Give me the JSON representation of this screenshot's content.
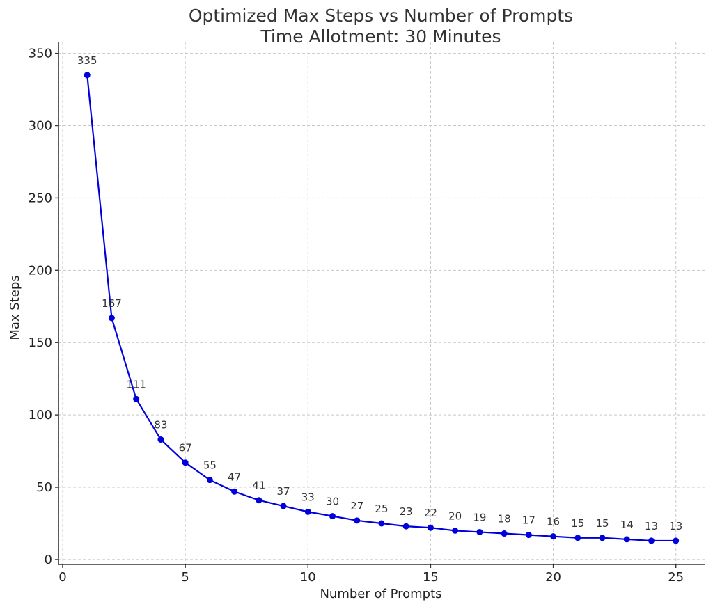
{
  "chart_data": {
    "type": "line",
    "title": "Optimized Max Steps vs Number of Prompts",
    "subtitle": "Time Allotment: 30 Minutes",
    "xlabel": "Number of Prompts",
    "ylabel": "Max Steps",
    "x": [
      1,
      2,
      3,
      4,
      5,
      6,
      7,
      8,
      9,
      10,
      11,
      12,
      13,
      14,
      15,
      16,
      17,
      18,
      19,
      20,
      21,
      22,
      23,
      24,
      25
    ],
    "series": [
      {
        "name": "Max Steps",
        "color": "#0000dd",
        "values": [
          335,
          167,
          111,
          83,
          67,
          55,
          47,
          41,
          37,
          33,
          30,
          27,
          25,
          23,
          22,
          20,
          19,
          18,
          17,
          16,
          15,
          15,
          14,
          13,
          13
        ]
      }
    ],
    "xticks": [
      "0",
      "5",
      "10",
      "15",
      "20",
      "25"
    ],
    "yticks": [
      "0",
      "50",
      "100",
      "150",
      "200",
      "250",
      "300",
      "350"
    ],
    "xlim": [
      -0.17,
      26.2
    ],
    "ylim": [
      -3.4,
      358
    ],
    "grid": true,
    "data_labels": true
  }
}
